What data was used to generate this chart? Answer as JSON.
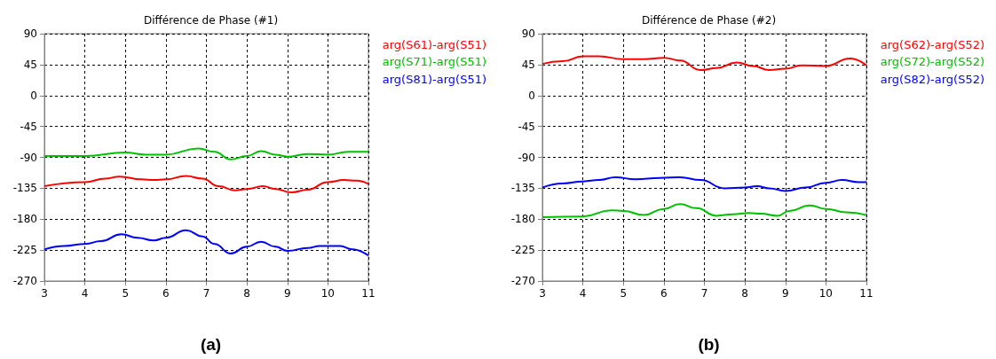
{
  "chart_data": [
    {
      "type": "line",
      "title": "Différence de Phase (#1)",
      "xlim": [
        3,
        11
      ],
      "xticks": [
        3,
        4,
        5,
        6,
        7,
        8,
        9,
        10,
        11
      ],
      "ylim": [
        -270,
        90
      ],
      "yticks": [
        -270,
        -225,
        -180,
        -135,
        -90,
        -45,
        0,
        45,
        90
      ],
      "grid": true,
      "legend": "right",
      "marker": "none",
      "line_style": "solid",
      "annotations": [
        "(a)"
      ],
      "series": [
        {
          "name": "arg(S61)-arg(S51)",
          "color": "#ff0000",
          "x": [
            3,
            4,
            4.5,
            4.85,
            5.4,
            5.7,
            6,
            6.5,
            6.9,
            7.3,
            7.7,
            8,
            8.4,
            8.7,
            9.1,
            9.5,
            10,
            10.4,
            10.7,
            11
          ],
          "values": [
            -132,
            -126,
            -121,
            -118,
            -122,
            -123,
            -122,
            -117,
            -121,
            -132,
            -138,
            -136,
            -132,
            -136,
            -141,
            -137,
            -126,
            -123,
            -124,
            -129
          ]
        },
        {
          "name": "arg(S71)-arg(S51)",
          "color": "#00c000",
          "x": [
            3,
            4,
            5,
            5.5,
            6,
            6.8,
            7.2,
            7.6,
            8,
            8.35,
            8.7,
            9,
            9.5,
            10,
            10.5,
            11
          ],
          "values": [
            -88,
            -88,
            -83,
            -86,
            -86,
            -77,
            -82,
            -93,
            -88,
            -81,
            -86,
            -89,
            -85,
            -86,
            -82,
            -82
          ]
        },
        {
          "name": "arg(S81)-arg(S51)",
          "color": "#0000ff",
          "x": [
            3,
            3.5,
            4,
            4.4,
            4.9,
            5.3,
            5.7,
            6,
            6.5,
            6.9,
            7.2,
            7.6,
            8,
            8.35,
            8.7,
            9,
            9.5,
            9.8,
            10.3,
            10.6,
            11
          ],
          "values": [
            -224,
            -219,
            -216,
            -212,
            -202,
            -207,
            -211,
            -207,
            -196,
            -205,
            -216,
            -230,
            -220,
            -213,
            -220,
            -226,
            -222,
            -219,
            -219,
            -224,
            -233
          ]
        }
      ]
    },
    {
      "type": "line",
      "title": "Différence de Phase (#2)",
      "xlim": [
        3,
        11
      ],
      "xticks": [
        3,
        4,
        5,
        6,
        7,
        8,
        9,
        10,
        11
      ],
      "ylim": [
        -270,
        90
      ],
      "yticks": [
        -270,
        -225,
        -180,
        -135,
        -90,
        -45,
        0,
        45,
        90
      ],
      "grid": true,
      "legend": "right",
      "marker": "none",
      "line_style": "solid",
      "annotations": [
        "(b)"
      ],
      "series": [
        {
          "name": "arg(S62)-arg(S52)",
          "color": "#ff0000",
          "x": [
            3,
            3.5,
            4,
            4.4,
            5,
            5.5,
            6,
            6.4,
            6.9,
            7.3,
            7.8,
            8.2,
            8.6,
            9,
            9.4,
            10,
            10.6,
            11
          ],
          "values": [
            46,
            50,
            57,
            57,
            53,
            53,
            55,
            51,
            37,
            40,
            48,
            43,
            37,
            39,
            44,
            43,
            54,
            44
          ]
        },
        {
          "name": "arg(S72)-arg(S52)",
          "color": "#00c000",
          "x": [
            3,
            4,
            4.7,
            5,
            5.5,
            6,
            6.4,
            6.8,
            7.3,
            7.7,
            8.1,
            8.4,
            8.8,
            9.1,
            9.6,
            10,
            10.5,
            11
          ],
          "values": [
            -177,
            -176,
            -167,
            -168,
            -174,
            -165,
            -158,
            -164,
            -175,
            -173,
            -171,
            -172,
            -175,
            -168,
            -160,
            -165,
            -170,
            -174
          ]
        },
        {
          "name": "arg(S82)-arg(S52)",
          "color": "#0000ff",
          "x": [
            3,
            3.5,
            4,
            4.4,
            4.8,
            5.3,
            5.9,
            6.4,
            6.9,
            7.5,
            8,
            8.3,
            8.6,
            9,
            9.5,
            10,
            10.4,
            10.8,
            11
          ],
          "values": [
            -134,
            -128,
            -125,
            -123,
            -119,
            -122,
            -120,
            -119,
            -123,
            -135,
            -134,
            -132,
            -135,
            -139,
            -134,
            -127,
            -123,
            -126,
            -126
          ]
        }
      ]
    }
  ]
}
